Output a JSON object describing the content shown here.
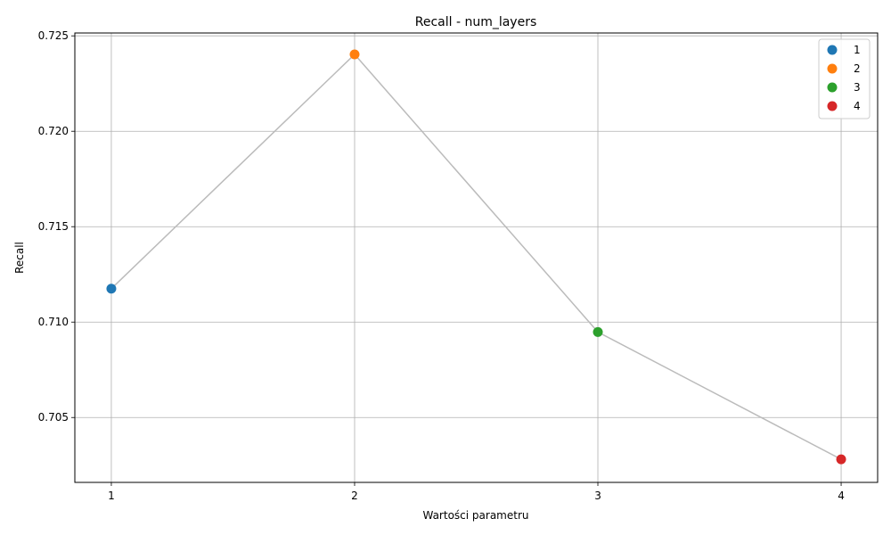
{
  "chart_data": {
    "type": "line",
    "title": "Recall - num_layers",
    "xlabel": "Wartości parametru",
    "ylabel": "Recall",
    "x": [
      1,
      2,
      3,
      4
    ],
    "x_tick_labels": [
      "1",
      "2",
      "3",
      "4"
    ],
    "y": [
      0.71175,
      0.72403,
      0.70948,
      0.70281
    ],
    "xlim": [
      0.85,
      4.15
    ],
    "ylim": [
      0.7016,
      0.72515
    ],
    "y_ticks": [
      0.705,
      0.71,
      0.715,
      0.72,
      0.725
    ],
    "y_tick_labels": [
      "0.705",
      "0.710",
      "0.715",
      "0.720",
      "0.725"
    ],
    "grid": true,
    "line_color": "#bbbbbb",
    "point_colors": [
      "#1f77b4",
      "#ff7f0e",
      "#2ca02c",
      "#d62728"
    ],
    "legend": {
      "placement": "top-right",
      "entries": [
        "1",
        "2",
        "3",
        "4"
      ]
    }
  }
}
